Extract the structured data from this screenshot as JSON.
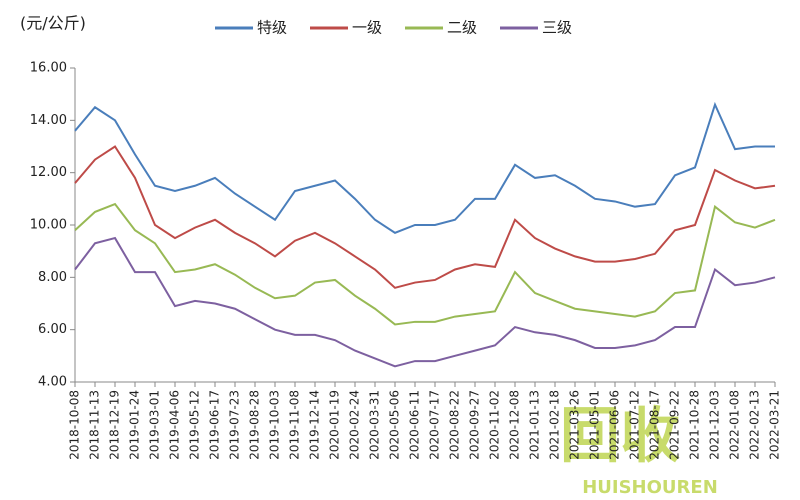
{
  "chart_data": {
    "type": "line",
    "unit_label": "(元/公斤)",
    "x": [
      "2018-10-08",
      "2018-11-13",
      "2018-12-19",
      "2019-01-24",
      "2019-03-01",
      "2019-04-06",
      "2019-05-12",
      "2019-06-17",
      "2019-07-23",
      "2019-08-28",
      "2019-10-03",
      "2019-11-08",
      "2019-12-14",
      "2020-01-19",
      "2020-02-24",
      "2020-03-31",
      "2020-05-06",
      "2020-06-11",
      "2020-07-17",
      "2020-08-22",
      "2020-09-27",
      "2020-11-02",
      "2020-12-08",
      "2021-01-13",
      "2021-02-18",
      "2021-03-26",
      "2021-05-01",
      "2021-06-06",
      "2021-07-12",
      "2021-08-17",
      "2021-09-22",
      "2021-10-28",
      "2021-12-03",
      "2022-01-08",
      "2022-02-13",
      "2022-03-21"
    ],
    "series": [
      {
        "name": "特级",
        "color": "#4a7ebb",
        "values": [
          13.6,
          14.5,
          14.0,
          12.7,
          11.5,
          11.3,
          11.5,
          11.8,
          11.2,
          10.7,
          10.2,
          11.3,
          11.5,
          11.7,
          11.0,
          10.2,
          9.7,
          10.0,
          10.0,
          10.2,
          11.0,
          11.0,
          12.3,
          11.8,
          11.9,
          11.5,
          11.0,
          10.9,
          10.7,
          10.8,
          11.9,
          12.2,
          14.6,
          12.9,
          13.0,
          13.0
        ]
      },
      {
        "name": "一级",
        "color": "#be4b48",
        "values": [
          11.6,
          12.5,
          13.0,
          11.8,
          10.0,
          9.5,
          9.9,
          10.2,
          9.7,
          9.3,
          8.8,
          9.4,
          9.7,
          9.3,
          8.8,
          8.3,
          7.6,
          7.8,
          7.9,
          8.3,
          8.5,
          8.4,
          10.2,
          9.5,
          9.1,
          8.8,
          8.6,
          8.6,
          8.7,
          8.9,
          9.8,
          10.0,
          12.1,
          11.7,
          11.4,
          11.5
        ]
      },
      {
        "name": "二级",
        "color": "#98b954",
        "values": [
          9.8,
          10.5,
          10.8,
          9.8,
          9.3,
          8.2,
          8.3,
          8.5,
          8.1,
          7.6,
          7.2,
          7.3,
          7.8,
          7.9,
          7.3,
          6.8,
          6.2,
          6.3,
          6.3,
          6.5,
          6.6,
          6.7,
          8.2,
          7.4,
          7.1,
          6.8,
          6.7,
          6.6,
          6.5,
          6.7,
          7.4,
          7.5,
          10.7,
          10.1,
          9.9,
          10.2
        ]
      },
      {
        "name": "三级",
        "color": "#7d60a0",
        "values": [
          8.3,
          9.3,
          9.5,
          8.2,
          8.2,
          6.9,
          7.1,
          7.0,
          6.8,
          6.4,
          6.0,
          5.8,
          5.8,
          5.6,
          5.2,
          4.9,
          4.6,
          4.8,
          4.8,
          5.0,
          5.2,
          5.4,
          6.1,
          5.9,
          5.8,
          5.6,
          5.3,
          5.3,
          5.4,
          5.6,
          6.1,
          6.1,
          8.3,
          7.7,
          7.8,
          8.0
        ]
      }
    ],
    "ylim": [
      4,
      16
    ],
    "yticks": [
      {
        "value": 4,
        "label": "4.00"
      },
      {
        "value": 6,
        "label": "6.00"
      },
      {
        "value": 8,
        "label": "8.00"
      },
      {
        "value": 10,
        "label": "10.00"
      },
      {
        "value": 12,
        "label": "12.00"
      },
      {
        "value": 14,
        "label": "14.00"
      },
      {
        "value": 16,
        "label": "16.00"
      }
    ],
    "grid": false,
    "legend": "top",
    "watermark": [
      "回收",
      "HUISHOUREN"
    ]
  }
}
